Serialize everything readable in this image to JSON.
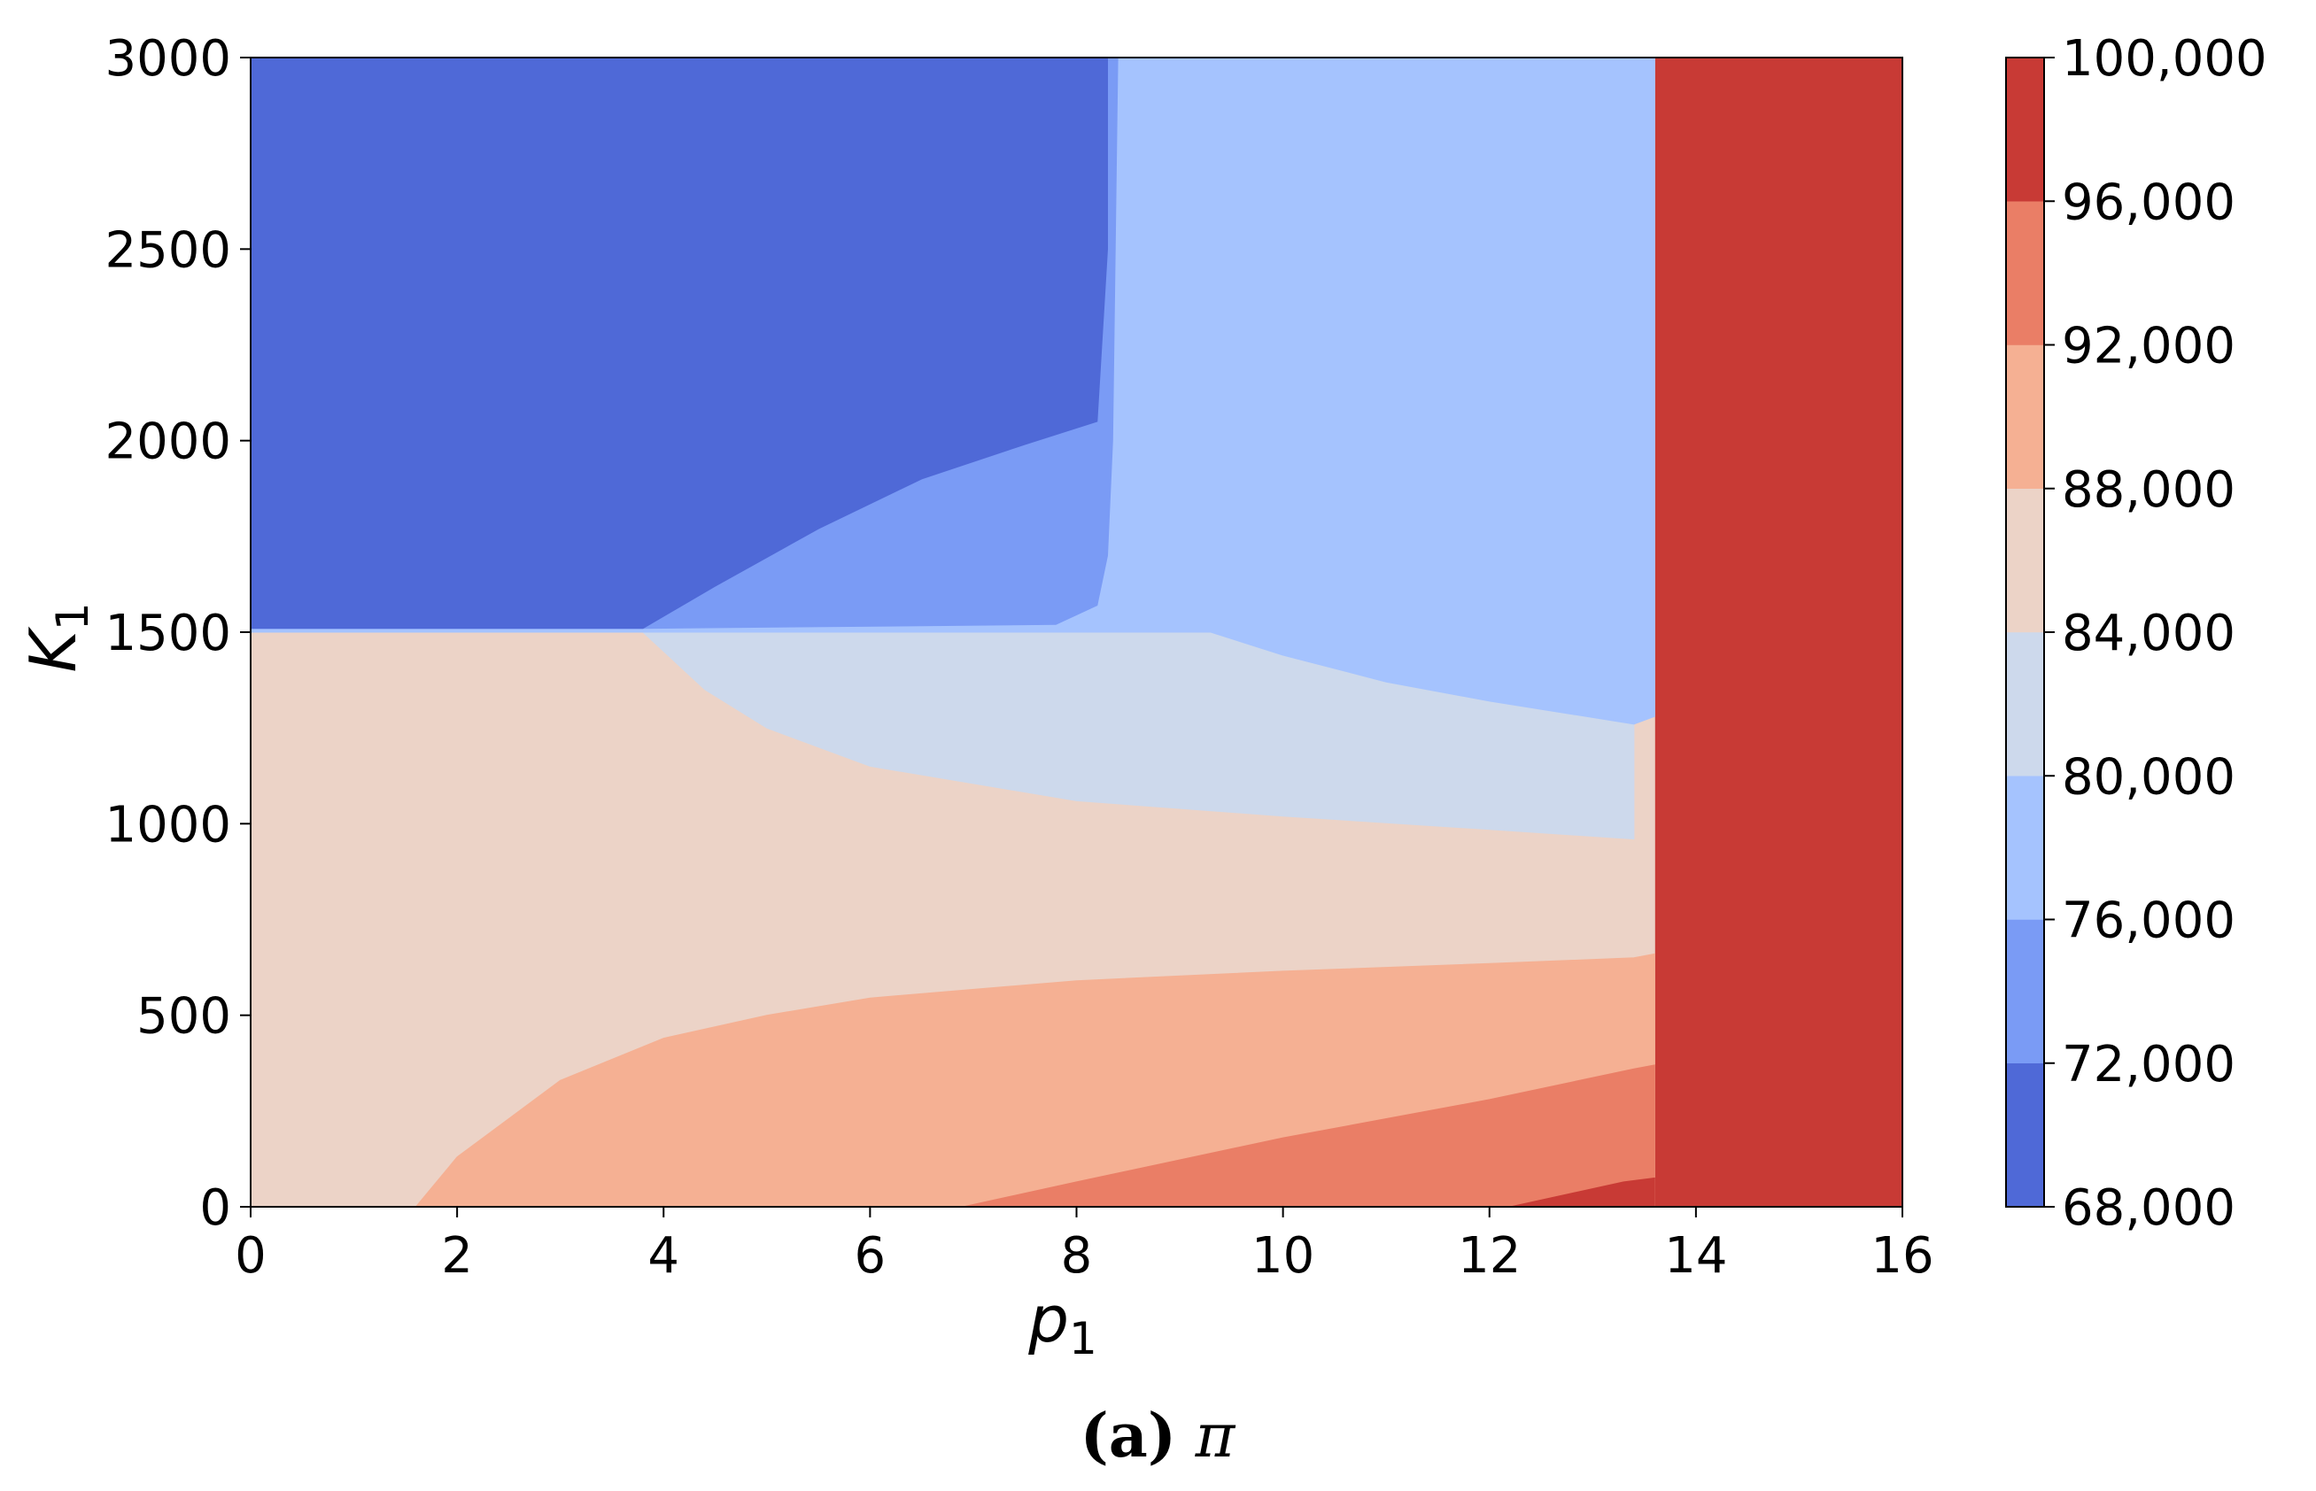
{
  "chart_data": {
    "type": "heatmap",
    "subtype": "filled-contour",
    "xlabel": {
      "main": "p",
      "sub": "1"
    },
    "ylabel": {
      "main": "K",
      "sub": "1"
    },
    "xlim": [
      0,
      16
    ],
    "ylim": [
      0,
      3000
    ],
    "x_ticks": [
      "0",
      "2",
      "4",
      "6",
      "8",
      "10",
      "12",
      "14",
      "16"
    ],
    "y_ticks": [
      "0",
      "500",
      "1000",
      "1500",
      "2000",
      "2500",
      "3000"
    ],
    "colorbar": {
      "levels": [
        68000,
        72000,
        76000,
        80000,
        84000,
        88000,
        92000,
        96000,
        100000
      ],
      "tick_labels": [
        "68,000",
        "72,000",
        "76,000",
        "80,000",
        "84,000",
        "88,000",
        "92,000",
        "96,000",
        "100,000"
      ],
      "colors": [
        "#4f69d7",
        "#7a9bf5",
        "#a5c3fe",
        "#cdd9ec",
        "#ecd3c7",
        "#f5b093",
        "#ea7e66",
        "#c83a35"
      ]
    },
    "regions": [
      {
        "name": "96,000–100,000",
        "color": "#c83a35",
        "boundary": [
          [
            13.6,
            0
          ],
          [
            16,
            0
          ],
          [
            16,
            3000
          ],
          [
            13.6,
            3000
          ]
        ]
      },
      {
        "name": "84,000–88,000",
        "color": "#ecd3c7",
        "boundary": [
          [
            0,
            0
          ],
          [
            13.6,
            0
          ],
          [
            13.6,
            3000
          ],
          [
            0,
            3000
          ]
        ]
      },
      {
        "name": "88,000–92,000",
        "color": "#f5b093",
        "boundary": [
          [
            1.6,
            0
          ],
          [
            2,
            130
          ],
          [
            3,
            330
          ],
          [
            4,
            440
          ],
          [
            5,
            500
          ],
          [
            6,
            545
          ],
          [
            8,
            590
          ],
          [
            10,
            615
          ],
          [
            12,
            635
          ],
          [
            13.4,
            650
          ],
          [
            13.6,
            660
          ],
          [
            13.6,
            0
          ]
        ]
      },
      {
        "name": "92,000–96,000",
        "color": "#ea7e66",
        "boundary": [
          [
            6.9,
            0
          ],
          [
            8,
            65
          ],
          [
            10,
            180
          ],
          [
            12,
            280
          ],
          [
            13.4,
            360
          ],
          [
            13.6,
            370
          ],
          [
            13.6,
            0
          ]
        ]
      },
      {
        "name": "96,000–100,000 (lower)",
        "color": "#c83a35",
        "boundary": [
          [
            12.2,
            0
          ],
          [
            13.3,
            65
          ],
          [
            13.6,
            75
          ],
          [
            13.6,
            0
          ]
        ]
      },
      {
        "name": "80,000–84,000",
        "color": "#cdd9ec",
        "boundary": [
          [
            3.8,
            1500
          ],
          [
            9.3,
            1500
          ],
          [
            10,
            1440
          ],
          [
            11,
            1370
          ],
          [
            12,
            1320
          ],
          [
            13.4,
            1260
          ],
          [
            13.4,
            960
          ],
          [
            12,
            985
          ],
          [
            10,
            1020
          ],
          [
            8,
            1060
          ],
          [
            6,
            1150
          ],
          [
            5,
            1250
          ],
          [
            4.4,
            1350
          ],
          [
            4,
            1450
          ],
          [
            3.8,
            1500
          ]
        ]
      },
      {
        "name": "76,000–80,000",
        "color": "#a5c3fe",
        "boundary": [
          [
            0,
            1500
          ],
          [
            3.8,
            1500
          ],
          [
            9.3,
            1500
          ],
          [
            10,
            1440
          ],
          [
            11,
            1370
          ],
          [
            12,
            1320
          ],
          [
            13.4,
            1260
          ],
          [
            13.6,
            1280
          ],
          [
            13.6,
            3000
          ],
          [
            0,
            3000
          ]
        ]
      },
      {
        "name": "72,000–76,000",
        "color": "#7a9bf5",
        "boundary": [
          [
            3.8,
            1510
          ],
          [
            7.8,
            1520
          ],
          [
            8.2,
            1570
          ],
          [
            8.3,
            1700
          ],
          [
            8.35,
            2000
          ],
          [
            8.4,
            3000
          ],
          [
            0,
            3000
          ],
          [
            0,
            1510
          ]
        ]
      },
      {
        "name": "68,000–72,000",
        "color": "#4f69d7",
        "boundary": [
          [
            0,
            1510
          ],
          [
            3.8,
            1510
          ],
          [
            4.5,
            1620
          ],
          [
            5.5,
            1770
          ],
          [
            6.5,
            1900
          ],
          [
            7.5,
            1990
          ],
          [
            8.2,
            2050
          ],
          [
            8.3,
            2500
          ],
          [
            8.3,
            3000
          ],
          [
            0,
            3000
          ]
        ]
      }
    ]
  },
  "caption": {
    "label": "(a)",
    "symbol": "π"
  }
}
